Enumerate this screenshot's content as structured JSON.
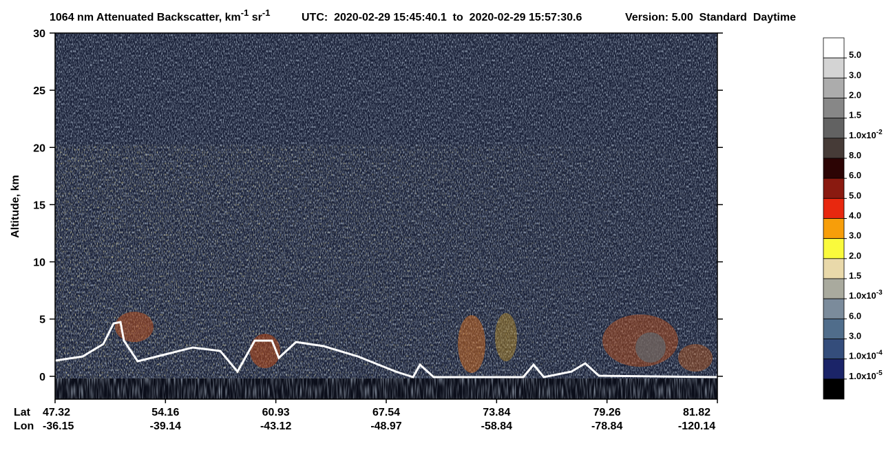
{
  "chart_data": {
    "type": "heatmap",
    "title": [
      "1064 nm Attenuated Backscatter, km",
      "-1",
      " sr",
      "-1"
    ],
    "utc": "UTC:  2020-02-29 15:45:40.1  to  2020-02-29 15:57:30.6",
    "version": "Version: 5.00  Standard  Daytime",
    "ylabel": "Altitude, km",
    "ylim": [
      -2,
      30
    ],
    "yticks": [
      0,
      5,
      10,
      15,
      20,
      25,
      30
    ],
    "x_row_labels": [
      "Lat",
      "Lon"
    ],
    "lat": [
      47.32,
      54.16,
      60.93,
      67.54,
      73.84,
      79.26,
      81.82
    ],
    "lon": [
      -36.15,
      -39.14,
      -43.12,
      -48.97,
      -58.84,
      -78.84,
      -120.14
    ],
    "colorscale": {
      "colors": [
        "#ffffff",
        "#d4d4d4",
        "#acacac",
        "#878787",
        "#626262",
        "#463b37",
        "#2c0404",
        "#8a1a10",
        "#e8280f",
        "#f79e0a",
        "#fafa3c",
        "#e9d9aa",
        "#a9aa9e",
        "#7b8b9b",
        "#506d8b",
        "#344d7b",
        "#1b2468",
        "#000000"
      ],
      "ticks": [
        {
          "value": 0.05,
          "label": "5.0"
        },
        {
          "value": 0.03,
          "label": "3.0"
        },
        {
          "value": 0.02,
          "label": "2.0"
        },
        {
          "value": 0.015,
          "label": "1.5"
        },
        {
          "value": 0.01,
          "label": "1.0x10",
          "exponent": "-2"
        },
        {
          "value": 0.008,
          "label": "8.0"
        },
        {
          "value": 0.006,
          "label": "6.0"
        },
        {
          "value": 0.005,
          "label": "5.0"
        },
        {
          "value": 0.004,
          "label": "4.0"
        },
        {
          "value": 0.003,
          "label": "3.0"
        },
        {
          "value": 0.002,
          "label": "2.0"
        },
        {
          "value": 0.0015,
          "label": "1.5"
        },
        {
          "value": 0.001,
          "label": "1.0x10",
          "exponent": "-3"
        },
        {
          "value": 0.0006,
          "label": "6.0"
        },
        {
          "value": 0.0003,
          "label": "3.0"
        },
        {
          "value": 0.0001,
          "label": "1.0x10",
          "exponent": "-4"
        },
        {
          "value": 1e-05,
          "label": "1.0x10",
          "exponent": "-5"
        }
      ]
    }
  }
}
